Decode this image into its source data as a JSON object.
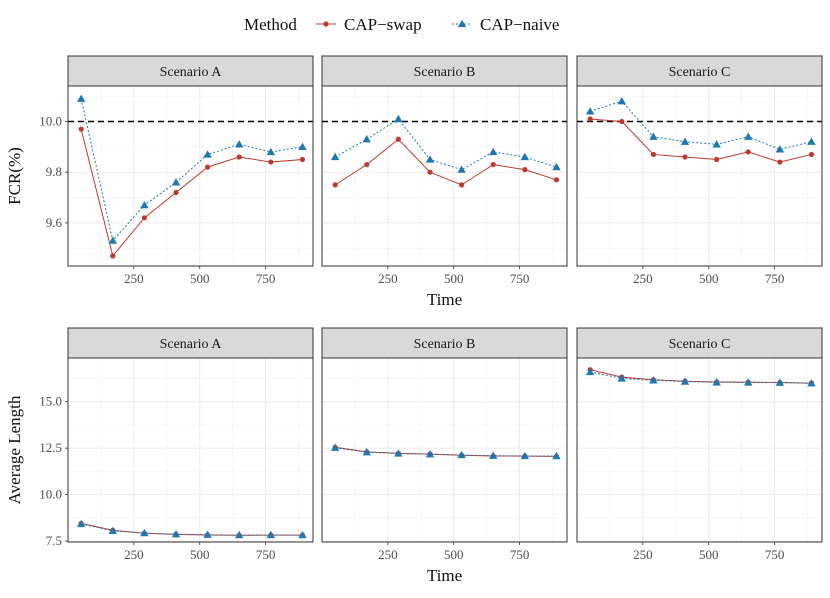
{
  "legend": {
    "title": "Method",
    "items": [
      {
        "label": "CAP−swap",
        "color": "#c0392b",
        "marker": "circle",
        "line": "solid"
      },
      {
        "label": "CAP−naive",
        "color": "#1f77b4",
        "marker": "triangle",
        "line": "dotted"
      }
    ]
  },
  "chart_data": [
    {
      "type": "line",
      "row": "top",
      "ylabel": "FCR(%)",
      "xlabel": "Time",
      "x_ticks": [
        250,
        500,
        750
      ],
      "y_ticks": [
        9.6,
        9.8,
        10.0
      ],
      "xlim": [
        0,
        930
      ],
      "ylim": [
        9.43,
        10.14
      ],
      "reference_line": 10.0,
      "panels": [
        {
          "title": "Scenario A",
          "x": [
            50,
            170,
            290,
            410,
            530,
            650,
            770,
            890
          ],
          "series": [
            {
              "name": "CAP−swap",
              "values": [
                9.97,
                9.47,
                9.62,
                9.72,
                9.82,
                9.86,
                9.84,
                9.85
              ]
            },
            {
              "name": "CAP−naive",
              "values": [
                10.09,
                9.53,
                9.67,
                9.76,
                9.87,
                9.91,
                9.88,
                9.9
              ]
            }
          ]
        },
        {
          "title": "Scenario B",
          "x": [
            50,
            170,
            290,
            410,
            530,
            650,
            770,
            890
          ],
          "series": [
            {
              "name": "CAP−swap",
              "values": [
                9.75,
                9.83,
                9.93,
                9.8,
                9.75,
                9.83,
                9.81,
                9.77
              ]
            },
            {
              "name": "CAP−naive",
              "values": [
                9.86,
                9.93,
                10.01,
                9.85,
                9.81,
                9.88,
                9.86,
                9.82
              ]
            }
          ]
        },
        {
          "title": "Scenario C",
          "x": [
            50,
            170,
            290,
            410,
            530,
            650,
            770,
            890
          ],
          "series": [
            {
              "name": "CAP−swap",
              "values": [
                10.01,
                10.0,
                9.87,
                9.86,
                9.85,
                9.88,
                9.84,
                9.87
              ]
            },
            {
              "name": "CAP−naive",
              "values": [
                10.04,
                10.08,
                9.94,
                9.92,
                9.91,
                9.94,
                9.89,
                9.92
              ]
            }
          ]
        }
      ]
    },
    {
      "type": "line",
      "row": "bottom",
      "ylabel": "Average Length",
      "xlabel": "Time",
      "x_ticks": [
        250,
        500,
        750
      ],
      "y_ticks": [
        7.5,
        10.0,
        12.5,
        15.0
      ],
      "xlim": [
        0,
        930
      ],
      "ylim": [
        7.45,
        17.35
      ],
      "panels": [
        {
          "title": "Scenario A",
          "x": [
            50,
            170,
            290,
            410,
            530,
            650,
            770,
            890
          ],
          "series": [
            {
              "name": "CAP−swap",
              "values": [
                8.45,
                8.08,
                7.92,
                7.86,
                7.83,
                7.81,
                7.82,
                7.82
              ]
            },
            {
              "name": "CAP−naive",
              "values": [
                8.42,
                8.05,
                7.93,
                7.87,
                7.84,
                7.82,
                7.83,
                7.82
              ]
            }
          ]
        },
        {
          "title": "Scenario B",
          "x": [
            50,
            170,
            290,
            410,
            530,
            650,
            770,
            890
          ],
          "series": [
            {
              "name": "CAP−swap",
              "values": [
                12.55,
                12.3,
                12.22,
                12.18,
                12.12,
                12.08,
                12.07,
                12.06
              ]
            },
            {
              "name": "CAP−naive",
              "values": [
                12.52,
                12.28,
                12.21,
                12.17,
                12.13,
                12.09,
                12.08,
                12.07
              ]
            }
          ]
        },
        {
          "title": "Scenario C",
          "x": [
            50,
            170,
            290,
            410,
            530,
            650,
            770,
            890
          ],
          "series": [
            {
              "name": "CAP−swap",
              "values": [
                16.72,
                16.32,
                16.18,
                16.1,
                16.06,
                16.05,
                16.03,
                16.0
              ]
            },
            {
              "name": "CAP−naive",
              "values": [
                16.6,
                16.25,
                16.15,
                16.08,
                16.04,
                16.03,
                16.02,
                15.99
              ]
            }
          ]
        }
      ]
    }
  ]
}
